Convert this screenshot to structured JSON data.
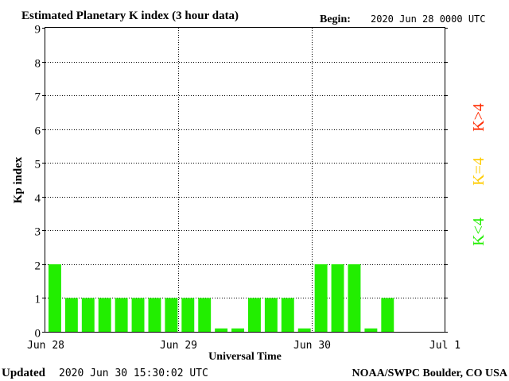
{
  "header": {
    "title": "Estimated Planetary K index (3 hour data)",
    "begin_label": "Begin:",
    "begin_value": "2020 Jun 28 0000 UTC"
  },
  "footer": {
    "updated_label": "Updated",
    "updated_value": "2020 Jun 30 15:30:02 UTC",
    "credit": "NOAA/SWPC Boulder, CO USA"
  },
  "legend": [
    {
      "label": "K>4",
      "color": "#ff2a00"
    },
    {
      "label": "K=4",
      "color": "#ffcc00"
    },
    {
      "label": "K<4",
      "color": "#22ee00"
    }
  ],
  "chart_data": {
    "type": "bar",
    "xlabel": "Universal Time",
    "ylabel": "Kp index",
    "ylim": [
      0,
      9
    ],
    "yticks": [
      0,
      1,
      2,
      3,
      4,
      5,
      6,
      7,
      8,
      9
    ],
    "xticks": [
      "Jun 28",
      "Jun 29",
      "Jun 30",
      "Jul 1"
    ],
    "interval_hours": 3,
    "bar_color": "#22ee00",
    "grid": true,
    "values": [
      2,
      1,
      1,
      1,
      1,
      1,
      1,
      1,
      1,
      1,
      0.1,
      0.1,
      1,
      1,
      1,
      0.1,
      2,
      2,
      2,
      0.1,
      1
    ]
  }
}
